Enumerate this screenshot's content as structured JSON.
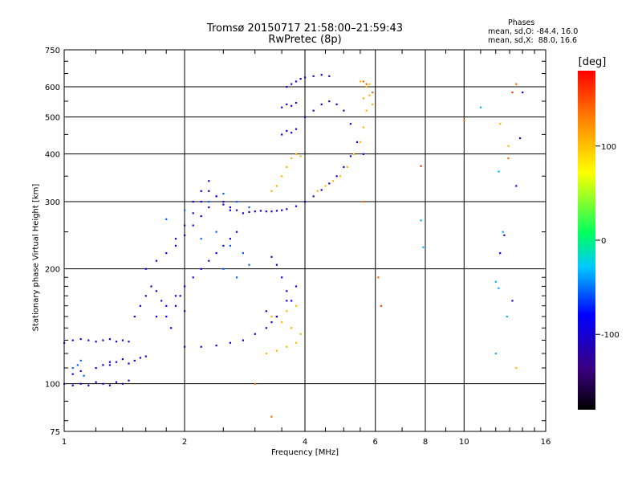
{
  "header": {
    "title_line1": "Tromsø 20150717 21:58:00–21:59:43",
    "title_line2": "RwPretec (8p)",
    "phases_title": "Phases",
    "phases_o": "mean, sd,O: -84.4, 16.0",
    "phases_x": "mean, sd,X:  88.0, 16.6"
  },
  "chart_data": {
    "type": "scatter",
    "xlabel": "Frequency [MHz]",
    "ylabel": "Stationary phase Virtual Height [km]",
    "x_scale": "log",
    "y_scale": "log",
    "xlim": [
      1,
      16
    ],
    "ylim": [
      75,
      750
    ],
    "x_ticks": [
      "1",
      "2",
      "4",
      "6",
      "8",
      "10",
      "16"
    ],
    "y_ticks": [
      "75",
      "100",
      "200",
      "300",
      "400",
      "500",
      "600",
      "750"
    ],
    "x_ticks_values": [
      1,
      2,
      4,
      6,
      8,
      10,
      16
    ],
    "y_ticks_values": [
      75,
      100,
      200,
      300,
      400,
      500,
      600,
      750
    ],
    "grid": true,
    "colorbar": {
      "unit": "[deg]",
      "range": [
        -180,
        180
      ],
      "ticks": [
        "100",
        "0",
        "-100"
      ],
      "ticks_values": [
        100,
        0,
        -100
      ],
      "colors": [
        "#000000",
        "#3a0080",
        "#0000ff",
        "#00c8ff",
        "#00ff60",
        "#ffff00",
        "#ff8000",
        "#ff0000"
      ]
    },
    "series": [
      {
        "phase": -100,
        "points": [
          [
            1.0,
            128
          ],
          [
            1.05,
            130
          ],
          [
            1.1,
            131
          ],
          [
            1.15,
            130
          ],
          [
            1.2,
            129
          ],
          [
            1.25,
            130
          ],
          [
            1.3,
            131
          ],
          [
            1.35,
            129
          ],
          [
            1.4,
            130
          ],
          [
            1.45,
            129
          ],
          [
            1.0,
            100
          ],
          [
            1.05,
            99
          ],
          [
            1.1,
            100
          ],
          [
            1.15,
            99
          ],
          [
            1.2,
            101
          ],
          [
            1.25,
            100
          ],
          [
            1.3,
            99
          ],
          [
            1.35,
            101
          ],
          [
            1.4,
            100
          ],
          [
            1.45,
            102
          ],
          [
            1.3,
            112
          ],
          [
            1.35,
            114
          ],
          [
            1.4,
            116
          ],
          [
            1.45,
            113
          ],
          [
            1.5,
            115
          ],
          [
            1.55,
            117
          ],
          [
            1.6,
            118
          ],
          [
            1.5,
            150
          ],
          [
            1.55,
            160
          ],
          [
            1.6,
            170
          ],
          [
            1.65,
            180
          ],
          [
            1.7,
            175
          ],
          [
            1.75,
            165
          ],
          [
            1.8,
            150
          ],
          [
            1.85,
            140
          ],
          [
            1.9,
            160
          ],
          [
            1.95,
            170
          ],
          [
            2.0,
            155
          ],
          [
            1.6,
            200
          ],
          [
            1.7,
            210
          ],
          [
            1.8,
            220
          ],
          [
            1.9,
            240
          ],
          [
            2.0,
            260
          ],
          [
            2.1,
            280
          ],
          [
            2.2,
            300
          ],
          [
            2.3,
            320
          ],
          [
            2.4,
            310
          ],
          [
            2.5,
            300
          ],
          [
            2.6,
            290
          ],
          [
            2.7,
            285
          ],
          [
            2.0,
            125
          ],
          [
            2.2,
            125
          ],
          [
            2.4,
            126
          ],
          [
            2.6,
            128
          ],
          [
            2.8,
            130
          ],
          [
            3.0,
            135
          ],
          [
            3.2,
            140
          ],
          [
            3.4,
            150
          ],
          [
            3.6,
            165
          ],
          [
            3.8,
            180
          ],
          [
            2.8,
            280
          ],
          [
            2.9,
            282
          ],
          [
            3.0,
            283
          ],
          [
            3.1,
            284
          ],
          [
            3.2,
            283
          ],
          [
            3.3,
            283
          ],
          [
            3.4,
            284
          ],
          [
            3.5,
            285
          ],
          [
            3.6,
            287
          ],
          [
            3.8,
            292
          ],
          [
            4.0,
            300
          ],
          [
            4.2,
            310
          ],
          [
            4.4,
            322
          ],
          [
            4.6,
            335
          ],
          [
            4.8,
            350
          ],
          [
            5.0,
            370
          ],
          [
            5.2,
            395
          ],
          [
            3.5,
            450
          ],
          [
            3.6,
            460
          ],
          [
            3.7,
            455
          ],
          [
            3.8,
            465
          ],
          [
            3.5,
            530
          ],
          [
            3.6,
            540
          ],
          [
            3.7,
            535
          ],
          [
            3.8,
            545
          ],
          [
            3.6,
            600
          ],
          [
            3.7,
            610
          ],
          [
            3.8,
            620
          ],
          [
            3.9,
            630
          ],
          [
            4.0,
            635
          ],
          [
            4.2,
            640
          ],
          [
            4.4,
            645
          ],
          [
            4.6,
            640
          ],
          [
            4.0,
            500
          ],
          [
            4.2,
            520
          ],
          [
            4.4,
            540
          ],
          [
            4.6,
            550
          ],
          [
            4.8,
            540
          ],
          [
            5.0,
            520
          ],
          [
            5.2,
            480
          ],
          [
            5.4,
            430
          ],
          [
            5.6,
            400
          ],
          [
            3.3,
            215
          ],
          [
            3.4,
            205
          ],
          [
            3.5,
            190
          ],
          [
            3.6,
            175
          ],
          [
            3.7,
            165
          ],
          [
            3.2,
            155
          ],
          [
            3.3,
            145
          ],
          [
            3.4,
            150
          ],
          [
            12.3,
            220
          ],
          [
            12.6,
            245
          ],
          [
            13.5,
            330
          ],
          [
            13.8,
            440
          ],
          [
            14.0,
            580
          ],
          [
            13.2,
            165
          ]
        ]
      },
      {
        "phase": -85,
        "points": [
          [
            1.7,
            150
          ],
          [
            1.8,
            160
          ],
          [
            1.9,
            170
          ],
          [
            2.0,
            180
          ],
          [
            2.1,
            190
          ],
          [
            2.2,
            200
          ],
          [
            2.3,
            210
          ],
          [
            2.4,
            220
          ],
          [
            2.5,
            230
          ],
          [
            2.6,
            240
          ],
          [
            2.7,
            250
          ],
          [
            1.2,
            110
          ],
          [
            1.25,
            112
          ],
          [
            1.3,
            114
          ],
          [
            1.1,
            108
          ],
          [
            1.05,
            106
          ],
          [
            2.1,
            300
          ],
          [
            2.2,
            320
          ],
          [
            2.3,
            340
          ],
          [
            2.4,
            310
          ],
          [
            2.5,
            295
          ],
          [
            2.6,
            285
          ],
          [
            1.9,
            230
          ],
          [
            2.0,
            245
          ],
          [
            2.1,
            260
          ],
          [
            2.2,
            275
          ],
          [
            2.3,
            290
          ]
        ]
      },
      {
        "phase": -55,
        "points": [
          [
            1.05,
            110
          ],
          [
            1.1,
            115
          ],
          [
            1.12,
            105
          ],
          [
            1.08,
            112
          ],
          [
            2.2,
            240
          ],
          [
            2.4,
            250
          ],
          [
            2.6,
            230
          ],
          [
            2.8,
            220
          ],
          [
            2.9,
            205
          ],
          [
            2.5,
            200
          ],
          [
            2.7,
            190
          ],
          [
            1.8,
            270
          ],
          [
            2.0,
            285
          ],
          [
            2.3,
            300
          ],
          [
            2.5,
            315
          ],
          [
            2.7,
            300
          ],
          [
            2.9,
            290
          ]
        ]
      },
      {
        "phase": -35,
        "points": [
          [
            11.0,
            530
          ],
          [
            12.0,
            185
          ],
          [
            12.2,
            178
          ],
          [
            12.5,
            250
          ],
          [
            12.2,
            360
          ],
          [
            12.8,
            150
          ],
          [
            12.0,
            120
          ],
          [
            7.8,
            268
          ],
          [
            7.9,
            228
          ]
        ]
      },
      {
        "phase": 105,
        "points": [
          [
            3.2,
            120
          ],
          [
            3.4,
            122
          ],
          [
            3.6,
            125
          ],
          [
            3.8,
            128
          ],
          [
            3.9,
            135
          ],
          [
            3.7,
            140
          ],
          [
            3.5,
            145
          ],
          [
            3.3,
            150
          ],
          [
            3.6,
            155
          ],
          [
            3.8,
            160
          ],
          [
            3.3,
            320
          ],
          [
            3.4,
            330
          ],
          [
            3.5,
            350
          ],
          [
            3.6,
            370
          ],
          [
            3.7,
            390
          ],
          [
            3.8,
            400
          ],
          [
            3.9,
            395
          ],
          [
            4.3,
            320
          ],
          [
            4.5,
            330
          ],
          [
            4.7,
            340
          ],
          [
            4.9,
            350
          ],
          [
            5.1,
            370
          ],
          [
            5.3,
            400
          ],
          [
            5.5,
            430
          ],
          [
            5.6,
            470
          ],
          [
            5.7,
            520
          ],
          [
            5.8,
            570
          ],
          [
            5.8,
            610
          ],
          [
            5.6,
            560
          ],
          [
            5.7,
            600
          ],
          [
            5.5,
            620
          ],
          [
            5.9,
            540
          ],
          [
            13.5,
            110
          ],
          [
            12.3,
            480
          ],
          [
            12.9,
            420
          ]
        ]
      },
      {
        "phase": 140,
        "points": [
          [
            5.6,
            620
          ],
          [
            5.7,
            610
          ],
          [
            5.9,
            580
          ],
          [
            3.0,
            100
          ],
          [
            3.3,
            82
          ],
          [
            5.6,
            300
          ],
          [
            6.1,
            190
          ],
          [
            10.0,
            490
          ],
          [
            13.5,
            610
          ],
          [
            12.9,
            390
          ]
        ]
      },
      {
        "phase": 160,
        "points": [
          [
            7.8,
            372
          ],
          [
            6.2,
            160
          ],
          [
            13.2,
            580
          ]
        ]
      }
    ]
  }
}
